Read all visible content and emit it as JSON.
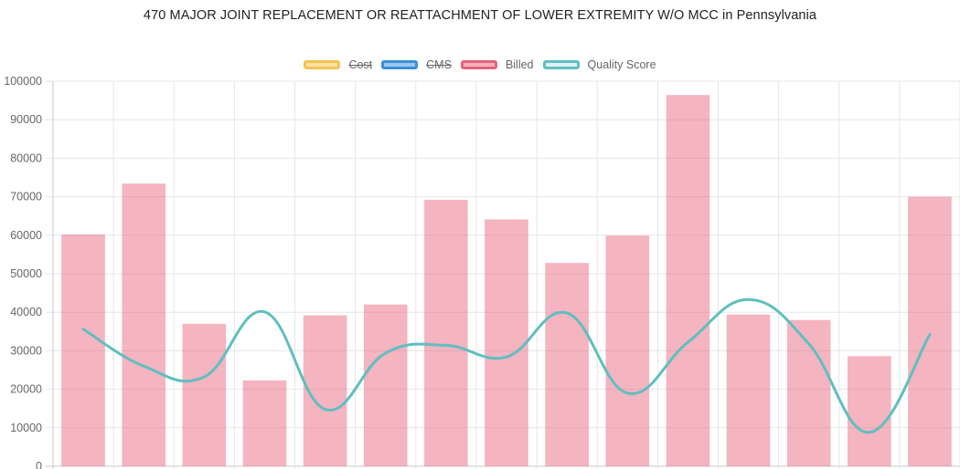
{
  "chart_data": {
    "type": "bar",
    "title": "470 MAJOR JOINT REPLACEMENT OR REATTACHMENT OF LOWER EXTREMITY W/O MCC in Pennsylvania",
    "legend_position": "top",
    "grid": true,
    "ylim": [
      0,
      100000
    ],
    "y_ticks": [
      "0",
      "10000",
      "20000",
      "30000",
      "40000",
      "50000",
      "60000",
      "70000",
      "80000",
      "90000",
      "100000"
    ],
    "categories_count": 15,
    "series": [
      {
        "name": "Cost",
        "type": "bar",
        "hidden": true,
        "color": "#f5c451",
        "values": []
      },
      {
        "name": "CMS",
        "type": "bar",
        "hidden": true,
        "color": "#3a8fd9",
        "values": []
      },
      {
        "name": "Billed",
        "type": "bar",
        "hidden": false,
        "color": "#e8627c",
        "values": [
          60200,
          73400,
          37000,
          22300,
          39200,
          42000,
          69200,
          64100,
          52800,
          59900,
          96400,
          39400,
          38000,
          28600,
          70000
        ]
      },
      {
        "name": "Quality Score",
        "type": "line",
        "hidden": false,
        "color": "#5fbfbf",
        "values": [
          35600,
          26000,
          23200,
          40100,
          14800,
          29400,
          31400,
          28400,
          39800,
          19000,
          32200,
          43300,
          31800,
          8800,
          34200
        ]
      }
    ]
  }
}
